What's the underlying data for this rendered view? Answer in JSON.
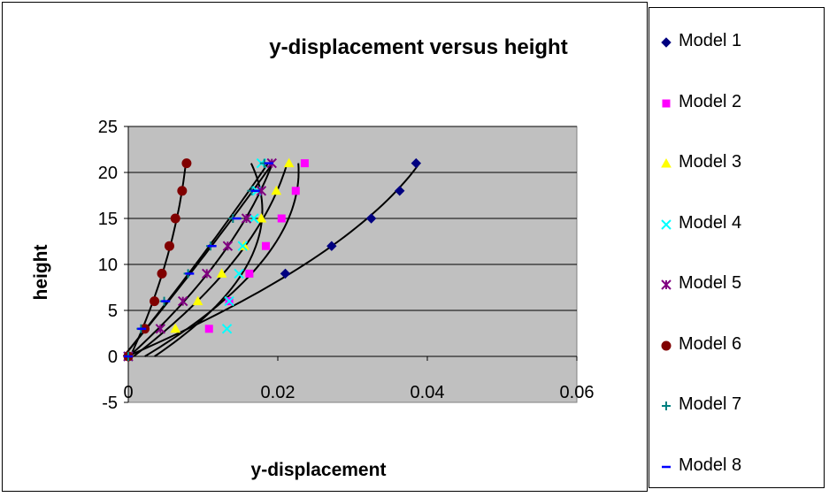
{
  "chart_data": {
    "type": "scatter",
    "title": "y-displacement versus height",
    "xlabel": "y-displacement",
    "ylabel": "height",
    "xlim": [
      0,
      0.06
    ],
    "ylim": [
      -5,
      25
    ],
    "x_ticks": [
      0,
      0.02,
      0.04,
      0.06
    ],
    "y_ticks": [
      -5,
      0,
      5,
      10,
      15,
      20,
      25
    ],
    "x_tick_labels": [
      "0",
      "0.02",
      "0.04",
      "0.06"
    ],
    "y_tick_labels": [
      "-5",
      "0",
      "5",
      "10",
      "15",
      "20",
      "25"
    ],
    "grid": "horizontal major gridlines",
    "plot_background": "#c0c0c0",
    "legend_position": "right",
    "trendlines": true,
    "series": [
      {
        "name": "Model 1",
        "marker": "diamond",
        "color": "#000080",
        "x": [
          0,
          0.021,
          0.0272,
          0.0325,
          0.0363,
          0.0385
        ],
        "y": [
          0,
          9,
          12,
          15,
          18,
          21
        ]
      },
      {
        "name": "Model 2",
        "marker": "square",
        "color": "#ff00ff",
        "x": [
          0,
          0.0108,
          0.0135,
          0.0162,
          0.0184,
          0.0205,
          0.0224,
          0.0236
        ],
        "y": [
          0,
          3,
          6,
          9,
          12,
          15,
          18,
          21
        ]
      },
      {
        "name": "Model 3",
        "marker": "triangle",
        "color": "#ffff00",
        "x": [
          0,
          0.0063,
          0.0093,
          0.0125,
          0.0155,
          0.0178,
          0.0198,
          0.0215
        ],
        "y": [
          0,
          3,
          6,
          9,
          12,
          15,
          18,
          21
        ]
      },
      {
        "name": "Model 4",
        "marker": "x",
        "color": "#00ffff",
        "x": [
          0,
          0.0132,
          0.0135,
          0.0148,
          0.0153,
          0.0168,
          0.0172,
          0.0178
        ],
        "y": [
          0,
          3,
          6,
          9,
          12,
          15,
          18,
          21
        ]
      },
      {
        "name": "Model 5",
        "marker": "star",
        "color": "#800080",
        "x": [
          0,
          0.0043,
          0.0073,
          0.0105,
          0.0133,
          0.0158,
          0.0178,
          0.0192
        ],
        "y": [
          0,
          3,
          6,
          9,
          12,
          15,
          18,
          21
        ]
      },
      {
        "name": "Model 6",
        "marker": "circle",
        "color": "#800000",
        "x": [
          0,
          0.0022,
          0.0035,
          0.0045,
          0.0055,
          0.0063,
          0.0072,
          0.0078
        ],
        "y": [
          0,
          3,
          6,
          9,
          12,
          15,
          18,
          21
        ]
      },
      {
        "name": "Model 7",
        "marker": "plus",
        "color": "#008080",
        "x": [
          0,
          0.0017,
          0.0048,
          0.008,
          0.011,
          0.014,
          0.0165,
          0.0182
        ],
        "y": [
          0,
          3,
          6,
          9,
          12,
          15,
          18,
          21
        ]
      },
      {
        "name": "Model 8",
        "marker": "dash",
        "color": "#0000ff",
        "x": [
          0,
          0.0018,
          0.005,
          0.0082,
          0.0112,
          0.0145,
          0.017,
          0.0188
        ],
        "y": [
          0,
          3,
          6,
          9,
          12,
          15,
          18,
          21
        ]
      }
    ]
  }
}
